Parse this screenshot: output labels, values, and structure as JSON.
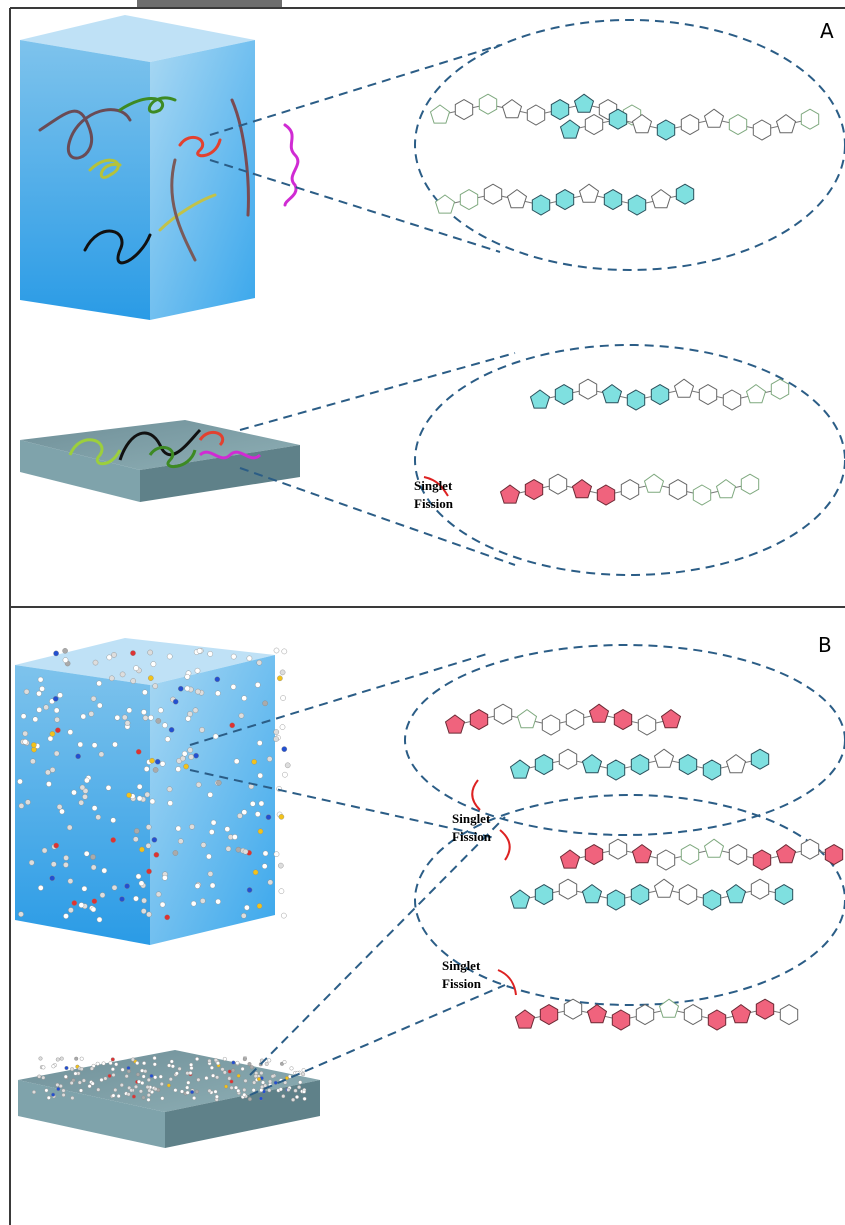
{
  "panels": [
    {
      "label": "A",
      "annotations": [
        {
          "lines": [
            "Singlet",
            "Fission"
          ]
        }
      ]
    },
    {
      "label": "B",
      "annotations": [
        {
          "lines": [
            "Singlet",
            "Fission"
          ]
        },
        {
          "lines": [
            "Singlet",
            "Fission"
          ]
        }
      ]
    }
  ]
}
